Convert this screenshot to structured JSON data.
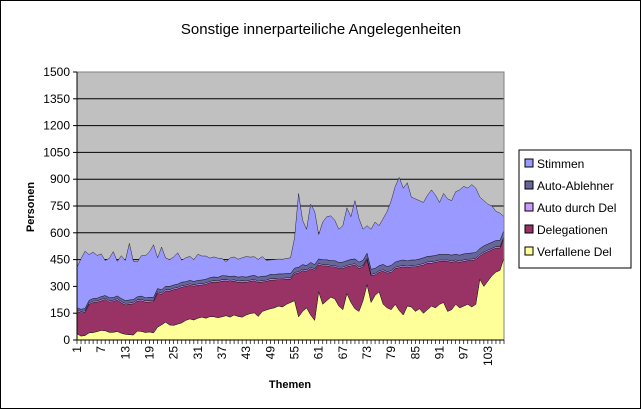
{
  "chart_data": {
    "type": "area",
    "stacked": true,
    "title": "Sonstige innerparteiliche Angelegenheiten",
    "xlabel": "Themen",
    "ylabel": "Personen",
    "ylim": [
      0,
      1500
    ],
    "yticks": [
      0,
      150,
      300,
      450,
      600,
      750,
      900,
      1050,
      1200,
      1350,
      1500
    ],
    "x_count": 107,
    "xticks": [
      1,
      7,
      13,
      19,
      25,
      31,
      37,
      43,
      49,
      55,
      61,
      67,
      73,
      79,
      85,
      91,
      97,
      103
    ],
    "legend_position": "right",
    "grid": true,
    "plot_background": "#c0c0c0",
    "totals_stimmen": [
      408,
      455,
      497,
      478,
      492,
      473,
      482,
      445,
      457,
      495,
      440,
      472,
      445,
      541,
      440,
      438,
      472,
      472,
      494,
      533,
      460,
      520,
      459,
      450,
      465,
      488,
      447,
      460,
      468,
      450,
      480,
      470,
      470,
      458,
      465,
      458,
      457,
      438,
      459,
      465,
      452,
      460,
      467,
      464,
      466,
      451,
      467,
      446,
      448,
      450,
      453,
      452,
      456,
      460,
      570,
      820,
      670,
      620,
      760,
      720,
      590,
      660,
      690,
      695,
      670,
      620,
      640,
      740,
      690,
      780,
      680,
      620,
      640,
      620,
      660,
      640,
      680,
      720,
      780,
      860,
      910,
      850,
      880,
      800,
      790,
      780,
      770,
      810,
      840,
      810,
      770,
      820,
      790,
      780,
      830,
      840,
      860,
      850,
      870,
      850,
      800,
      780,
      760,
      750,
      720,
      710,
      690
    ],
    "series": [
      {
        "name": "Verfallene Del",
        "color": "#ffff99",
        "values": [
          35,
          22,
          25,
          40,
          42,
          47,
          54,
          52,
          43,
          43,
          48,
          38,
          32,
          30,
          28,
          50,
          48,
          42,
          45,
          40,
          72,
          85,
          100,
          84,
          82,
          89,
          96,
          110,
          118,
          112,
          122,
          128,
          122,
          131,
          130,
          125,
          130,
          136,
          128,
          140,
          132,
          128,
          140,
          148,
          152,
          132,
          160,
          168,
          175,
          180,
          190,
          185,
          200,
          210,
          220,
          130,
          160,
          180,
          140,
          110,
          270,
          200,
          220,
          240,
          230,
          190,
          170,
          260,
          210,
          175,
          160,
          220,
          310,
          210,
          250,
          270,
          200,
          180,
          170,
          200,
          165,
          140,
          190,
          185,
          160,
          175,
          150,
          170,
          190,
          180,
          200,
          210,
          160,
          170,
          200,
          180,
          190,
          200,
          185,
          200,
          340,
          300,
          330,
          360,
          380,
          390,
          460
        ]
      },
      {
        "name": "Delegationen",
        "color": "#993366",
        "values": [
          125,
          130,
          130,
          160,
          168,
          165,
          165,
          175,
          170,
          172,
          175,
          170,
          165,
          170,
          175,
          168,
          172,
          170,
          168,
          175,
          190,
          170,
          175,
          190,
          200,
          198,
          200,
          190,
          188,
          190,
          184,
          180,
          190,
          190,
          195,
          198,
          200,
          195,
          198,
          190,
          190,
          197,
          182,
          180,
          180,
          190,
          165,
          160,
          160,
          156,
          148,
          153,
          140,
          130,
          150,
          245,
          228,
          205,
          260,
          280,
          150,
          215,
          195,
          170,
          180,
          210,
          230,
          150,
          205,
          245,
          240,
          190,
          140,
          150,
          115,
          110,
          185,
          195,
          210,
          200,
          240,
          270,
          215,
          225,
          250,
          240,
          270,
          260,
          240,
          255,
          240,
          230,
          280,
          265,
          240,
          255,
          250,
          245,
          260,
          250,
          130,
          185,
          165,
          145,
          135,
          125,
          110
        ]
      },
      {
        "name": "Auto durch Del",
        "color": "#cc99ff",
        "values": [
          8,
          7,
          8,
          7,
          8,
          7,
          8,
          7,
          8,
          7,
          8,
          7,
          8,
          7,
          8,
          7,
          8,
          7,
          8,
          7,
          8,
          7,
          8,
          7,
          8,
          7,
          8,
          7,
          8,
          7,
          8,
          7,
          8,
          7,
          8,
          7,
          8,
          7,
          8,
          7,
          8,
          7,
          8,
          7,
          8,
          7,
          8,
          7,
          8,
          7,
          8,
          7,
          8,
          7,
          8,
          7,
          8,
          7,
          8,
          7,
          8,
          7,
          8,
          7,
          8,
          7,
          8,
          7,
          8,
          7,
          8,
          7,
          8,
          7,
          8,
          7,
          8,
          7,
          8,
          7,
          8,
          7,
          8,
          7,
          8,
          7,
          8,
          7,
          8,
          7,
          8,
          7,
          8,
          7,
          8,
          7,
          8,
          7,
          8,
          7,
          8,
          7,
          8,
          7,
          8,
          7,
          8
        ]
      },
      {
        "name": "Auto-Ablehner",
        "color": "#666699",
        "values": [
          12,
          13,
          14,
          15,
          14,
          15,
          16,
          15,
          16,
          15,
          16,
          17,
          16,
          17,
          16,
          17,
          18,
          17,
          18,
          17,
          18,
          19,
          18,
          19,
          18,
          19,
          20,
          19,
          20,
          19,
          20,
          21,
          20,
          21,
          20,
          21,
          22,
          21,
          22,
          21,
          22,
          23,
          22,
          23,
          22,
          23,
          24,
          23,
          24,
          23,
          24,
          25,
          24,
          25,
          24,
          25,
          26,
          25,
          26,
          25,
          26,
          27,
          26,
          27,
          26,
          27,
          28,
          27,
          28,
          27,
          28,
          29,
          28,
          29,
          28,
          29,
          30,
          29,
          30,
          29,
          30,
          31,
          30,
          31,
          30,
          31,
          32,
          31,
          32,
          31,
          32,
          33,
          32,
          33,
          32,
          33,
          34,
          33,
          34,
          33,
          34,
          35,
          34,
          35,
          34,
          35,
          36
        ]
      }
    ],
    "series_top": {
      "name": "Stimmen",
      "color": "#9999ff"
    },
    "legend_order": [
      "Stimmen",
      "Auto-Ablehner",
      "Auto durch Del",
      "Delegationen",
      "Verfallene Del"
    ]
  }
}
